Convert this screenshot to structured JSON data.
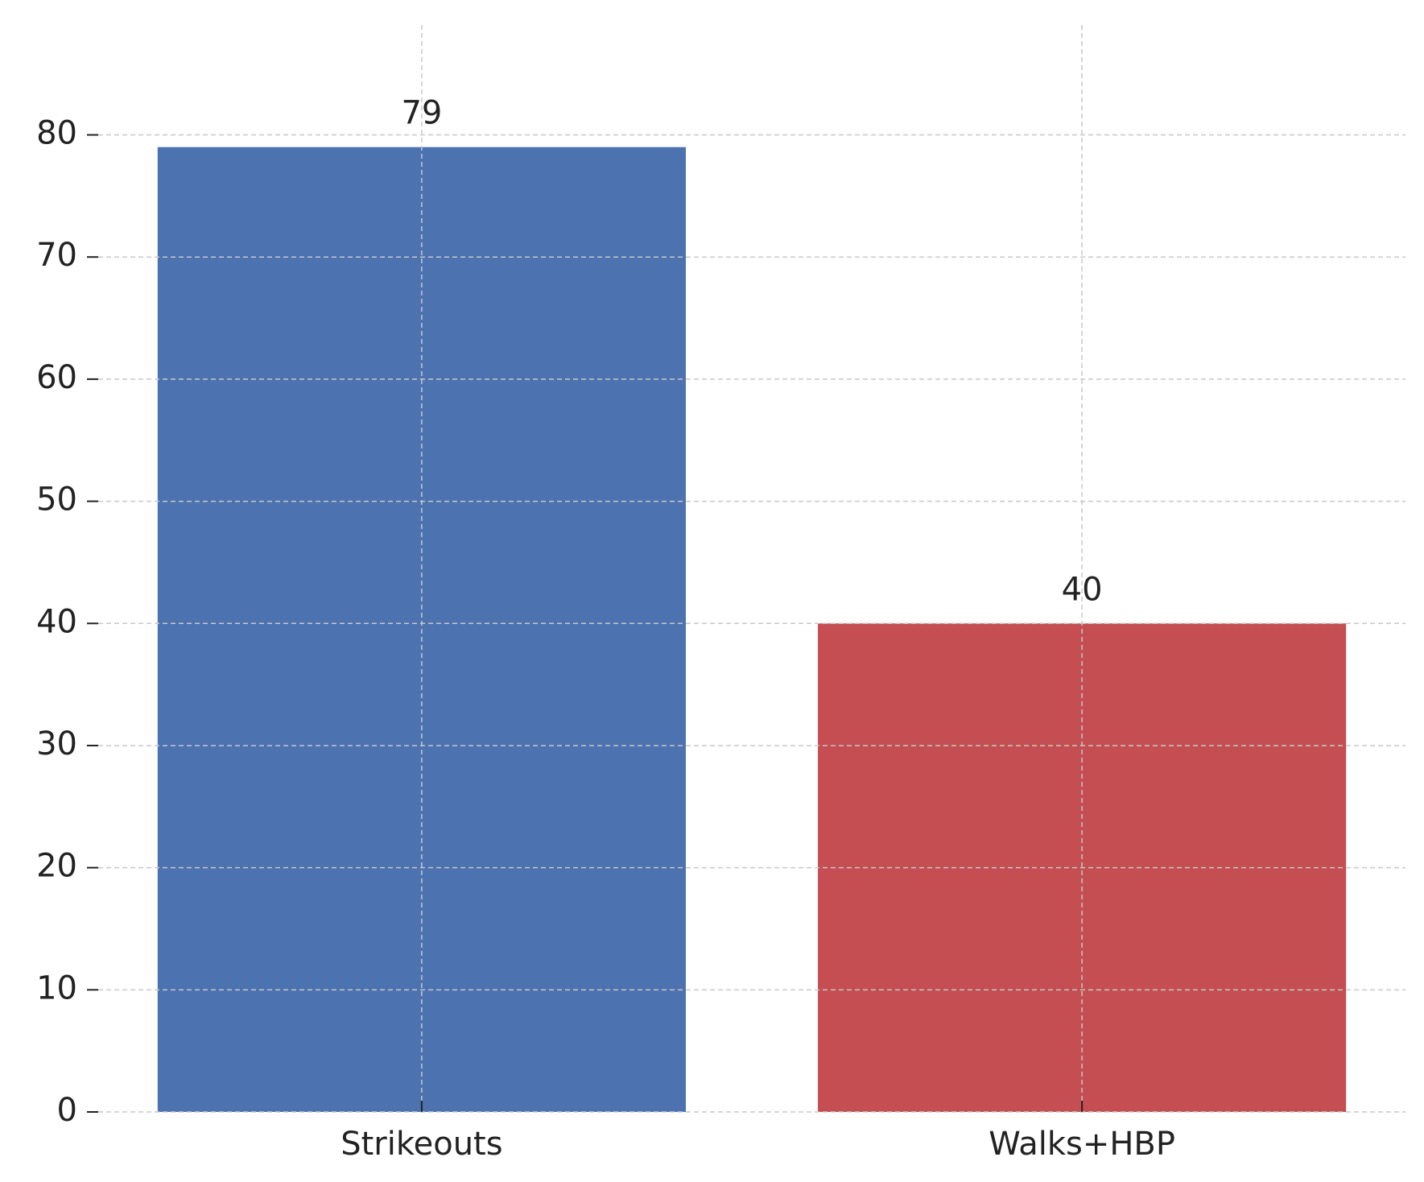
{
  "chart_data": {
    "type": "bar",
    "categories": [
      "Strikeouts",
      "Walks+HBP"
    ],
    "values": [
      79,
      40
    ],
    "colors": [
      "#4c72b0",
      "#c44e52"
    ],
    "ylim": [
      0,
      89
    ],
    "yticks": [
      0,
      10,
      20,
      30,
      40,
      50,
      60,
      70,
      80
    ],
    "grid": true
  }
}
